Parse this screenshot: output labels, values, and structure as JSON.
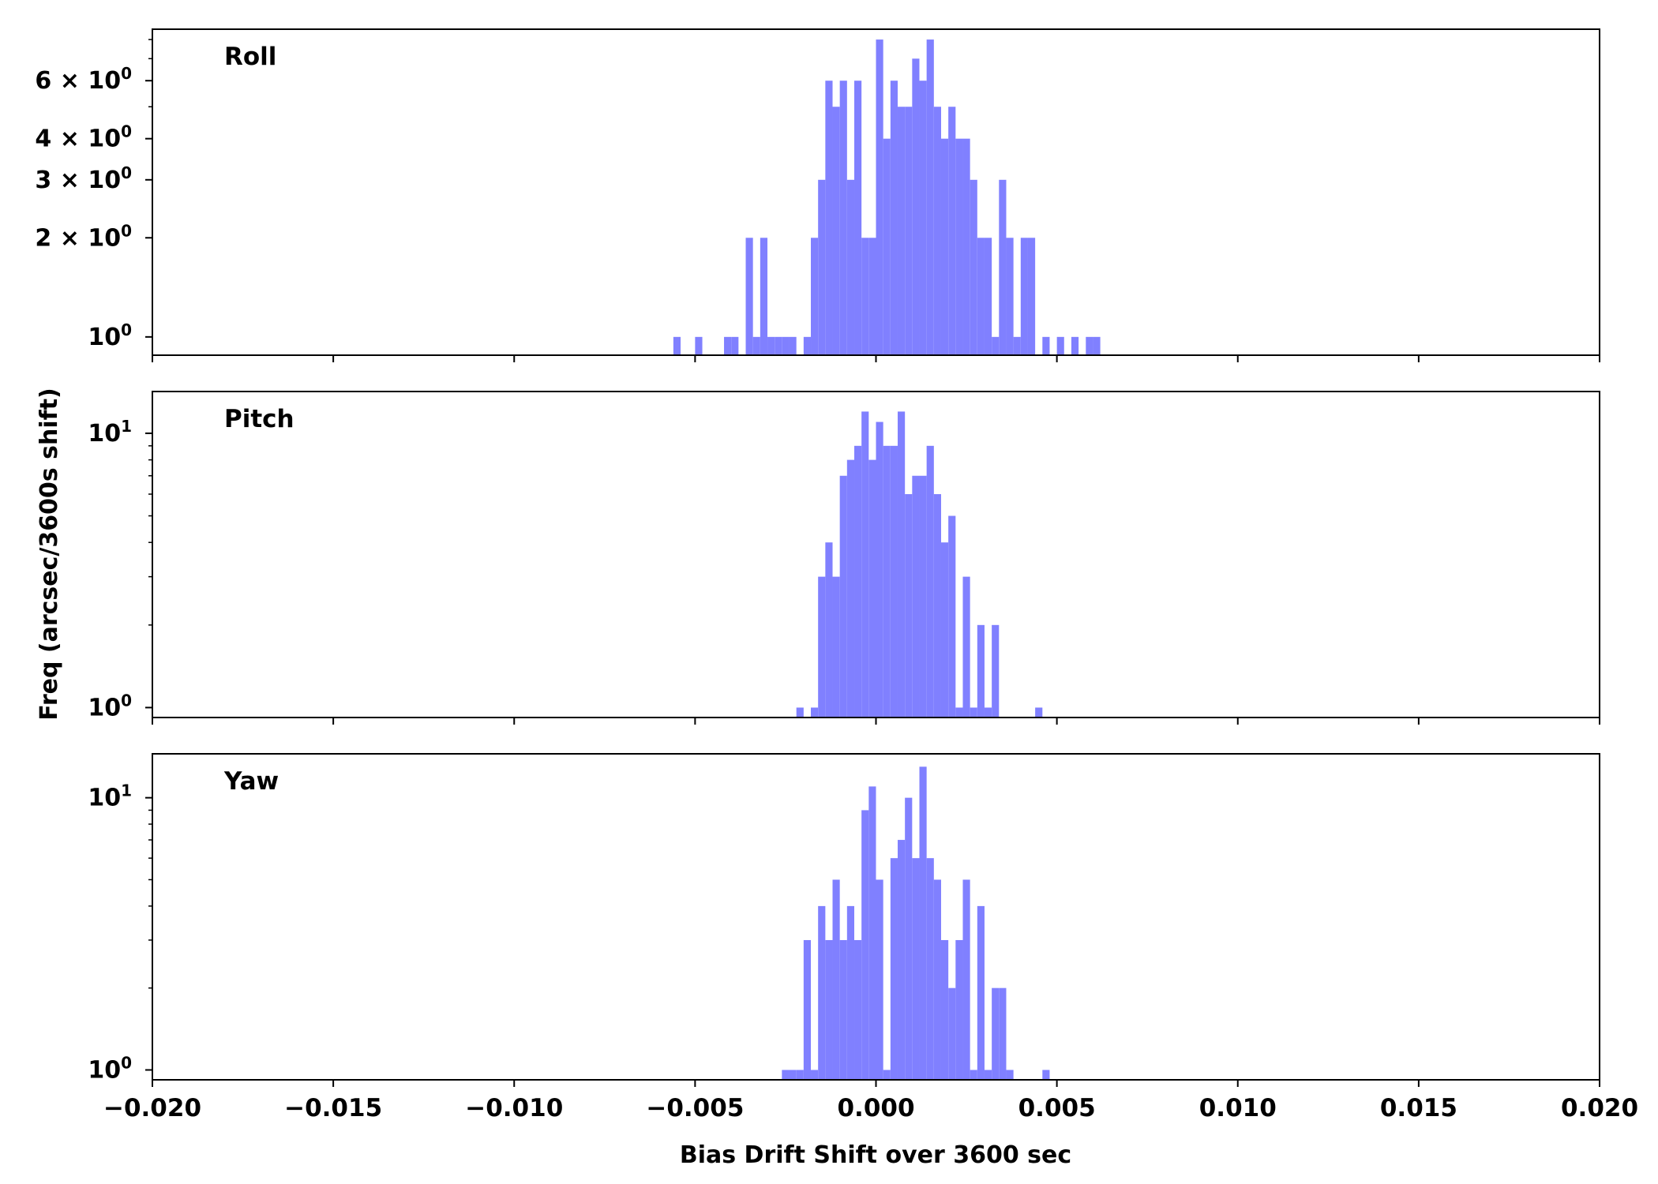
{
  "chart_data": [
    {
      "type": "bar",
      "title": "Roll",
      "yscale": "log",
      "xlim": [
        -0.02,
        0.02
      ],
      "ylim": [
        0.88,
        8.6
      ],
      "bar_width": 0.0002,
      "color": "#8080ff",
      "ytick_labels": [
        {
          "value": 1,
          "base": "10",
          "exp": "0"
        },
        {
          "value": 2,
          "base": "2 × 10",
          "exp": "0"
        },
        {
          "value": 3,
          "base": "3 × 10",
          "exp": "0"
        },
        {
          "value": 4,
          "base": "4 × 10",
          "exp": "0"
        },
        {
          "value": 6,
          "base": "6 × 10",
          "exp": "0"
        }
      ],
      "minor_ticks": [
        5,
        7,
        8
      ],
      "bars": [
        {
          "x": -0.0056,
          "y": 1
        },
        {
          "x": -0.005,
          "y": 1
        },
        {
          "x": -0.0042,
          "y": 1
        },
        {
          "x": -0.004,
          "y": 1
        },
        {
          "x": -0.0036,
          "y": 2
        },
        {
          "x": -0.0034,
          "y": 1
        },
        {
          "x": -0.0032,
          "y": 2
        },
        {
          "x": -0.003,
          "y": 1
        },
        {
          "x": -0.0028,
          "y": 1
        },
        {
          "x": -0.0026,
          "y": 1
        },
        {
          "x": -0.0024,
          "y": 1
        },
        {
          "x": -0.002,
          "y": 1
        },
        {
          "x": -0.0018,
          "y": 2
        },
        {
          "x": -0.0016,
          "y": 3
        },
        {
          "x": -0.0014,
          "y": 6
        },
        {
          "x": -0.0012,
          "y": 5
        },
        {
          "x": -0.001,
          "y": 6
        },
        {
          "x": -0.0008,
          "y": 3
        },
        {
          "x": -0.0006,
          "y": 6
        },
        {
          "x": -0.0004,
          "y": 2
        },
        {
          "x": -0.0002,
          "y": 2
        },
        {
          "x": 0.0,
          "y": 8
        },
        {
          "x": 0.0002,
          "y": 4
        },
        {
          "x": 0.0004,
          "y": 6
        },
        {
          "x": 0.0006,
          "y": 5
        },
        {
          "x": 0.0008,
          "y": 5
        },
        {
          "x": 0.001,
          "y": 7
        },
        {
          "x": 0.0012,
          "y": 6
        },
        {
          "x": 0.0014,
          "y": 8
        },
        {
          "x": 0.0016,
          "y": 5
        },
        {
          "x": 0.0018,
          "y": 4
        },
        {
          "x": 0.002,
          "y": 5
        },
        {
          "x": 0.0022,
          "y": 4
        },
        {
          "x": 0.0024,
          "y": 4
        },
        {
          "x": 0.0026,
          "y": 3
        },
        {
          "x": 0.0028,
          "y": 2
        },
        {
          "x": 0.003,
          "y": 2
        },
        {
          "x": 0.0032,
          "y": 1
        },
        {
          "x": 0.0034,
          "y": 3
        },
        {
          "x": 0.0036,
          "y": 2
        },
        {
          "x": 0.0038,
          "y": 1
        },
        {
          "x": 0.004,
          "y": 2
        },
        {
          "x": 0.0042,
          "y": 2
        },
        {
          "x": 0.0046,
          "y": 1
        },
        {
          "x": 0.005,
          "y": 1
        },
        {
          "x": 0.0054,
          "y": 1
        },
        {
          "x": 0.0058,
          "y": 1
        },
        {
          "x": 0.006,
          "y": 1
        }
      ]
    },
    {
      "type": "bar",
      "title": "Pitch",
      "yscale": "log",
      "xlim": [
        -0.02,
        0.02
      ],
      "ylim": [
        0.92,
        14.2
      ],
      "bar_width": 0.0002,
      "color": "#8080ff",
      "ytick_labels": [
        {
          "value": 1,
          "base": "10",
          "exp": "0"
        },
        {
          "value": 10,
          "base": "10",
          "exp": "1"
        }
      ],
      "minor_ticks": [
        2,
        3,
        4,
        5,
        6,
        7,
        8,
        9
      ],
      "bars": [
        {
          "x": -0.0022,
          "y": 1
        },
        {
          "x": -0.0018,
          "y": 1
        },
        {
          "x": -0.0016,
          "y": 3
        },
        {
          "x": -0.0014,
          "y": 4
        },
        {
          "x": -0.0012,
          "y": 3
        },
        {
          "x": -0.001,
          "y": 7
        },
        {
          "x": -0.0008,
          "y": 8
        },
        {
          "x": -0.0006,
          "y": 9
        },
        {
          "x": -0.0004,
          "y": 12
        },
        {
          "x": -0.0002,
          "y": 8
        },
        {
          "x": 0.0,
          "y": 11
        },
        {
          "x": 0.0002,
          "y": 9
        },
        {
          "x": 0.0004,
          "y": 9
        },
        {
          "x": 0.0006,
          "y": 12
        },
        {
          "x": 0.0008,
          "y": 6
        },
        {
          "x": 0.001,
          "y": 7
        },
        {
          "x": 0.0012,
          "y": 7
        },
        {
          "x": 0.0014,
          "y": 9
        },
        {
          "x": 0.0016,
          "y": 6
        },
        {
          "x": 0.0018,
          "y": 4
        },
        {
          "x": 0.002,
          "y": 5
        },
        {
          "x": 0.0022,
          "y": 1
        },
        {
          "x": 0.0024,
          "y": 3
        },
        {
          "x": 0.0026,
          "y": 1
        },
        {
          "x": 0.0028,
          "y": 2
        },
        {
          "x": 0.003,
          "y": 1
        },
        {
          "x": 0.0032,
          "y": 2
        },
        {
          "x": 0.0044,
          "y": 1
        }
      ]
    },
    {
      "type": "bar",
      "title": "Yaw",
      "yscale": "log",
      "xlim": [
        -0.02,
        0.02
      ],
      "ylim": [
        0.92,
        14.5
      ],
      "bar_width": 0.0002,
      "color": "#8080ff",
      "ytick_labels": [
        {
          "value": 1,
          "base": "10",
          "exp": "0"
        },
        {
          "value": 10,
          "base": "10",
          "exp": "1"
        }
      ],
      "minor_ticks": [
        2,
        3,
        4,
        5,
        6,
        7,
        8,
        9
      ],
      "bars": [
        {
          "x": -0.0026,
          "y": 1
        },
        {
          "x": -0.0024,
          "y": 1
        },
        {
          "x": -0.0022,
          "y": 1
        },
        {
          "x": -0.002,
          "y": 3
        },
        {
          "x": -0.0018,
          "y": 1
        },
        {
          "x": -0.0016,
          "y": 4
        },
        {
          "x": -0.0014,
          "y": 3
        },
        {
          "x": -0.0012,
          "y": 5
        },
        {
          "x": -0.001,
          "y": 3
        },
        {
          "x": -0.0008,
          "y": 4
        },
        {
          "x": -0.0006,
          "y": 3
        },
        {
          "x": -0.0004,
          "y": 9
        },
        {
          "x": -0.0002,
          "y": 11
        },
        {
          "x": 0.0,
          "y": 5
        },
        {
          "x": 0.0002,
          "y": 1
        },
        {
          "x": 0.0004,
          "y": 6
        },
        {
          "x": 0.0006,
          "y": 7
        },
        {
          "x": 0.0008,
          "y": 10
        },
        {
          "x": 0.001,
          "y": 6
        },
        {
          "x": 0.0012,
          "y": 13
        },
        {
          "x": 0.0014,
          "y": 6
        },
        {
          "x": 0.0016,
          "y": 5
        },
        {
          "x": 0.0018,
          "y": 3
        },
        {
          "x": 0.002,
          "y": 2
        },
        {
          "x": 0.0022,
          "y": 3
        },
        {
          "x": 0.0024,
          "y": 5
        },
        {
          "x": 0.0026,
          "y": 1
        },
        {
          "x": 0.0028,
          "y": 4
        },
        {
          "x": 0.003,
          "y": 1
        },
        {
          "x": 0.0032,
          "y": 2
        },
        {
          "x": 0.0034,
          "y": 2
        },
        {
          "x": 0.0036,
          "y": 1
        },
        {
          "x": 0.0046,
          "y": 1
        }
      ]
    }
  ],
  "xlabel": "Bias Drift Shift over 3600 sec",
  "ylabel": "Freq (arcsec/3600s shift)",
  "xticks": [
    {
      "value": -0.02,
      "label": "−0.020"
    },
    {
      "value": -0.015,
      "label": "−0.015"
    },
    {
      "value": -0.01,
      "label": "−0.010"
    },
    {
      "value": -0.005,
      "label": "−0.005"
    },
    {
      "value": 0.0,
      "label": "0.000"
    },
    {
      "value": 0.005,
      "label": "0.005"
    },
    {
      "value": 0.01,
      "label": "0.010"
    },
    {
      "value": 0.015,
      "label": "0.015"
    },
    {
      "value": 0.02,
      "label": "0.020"
    }
  ]
}
